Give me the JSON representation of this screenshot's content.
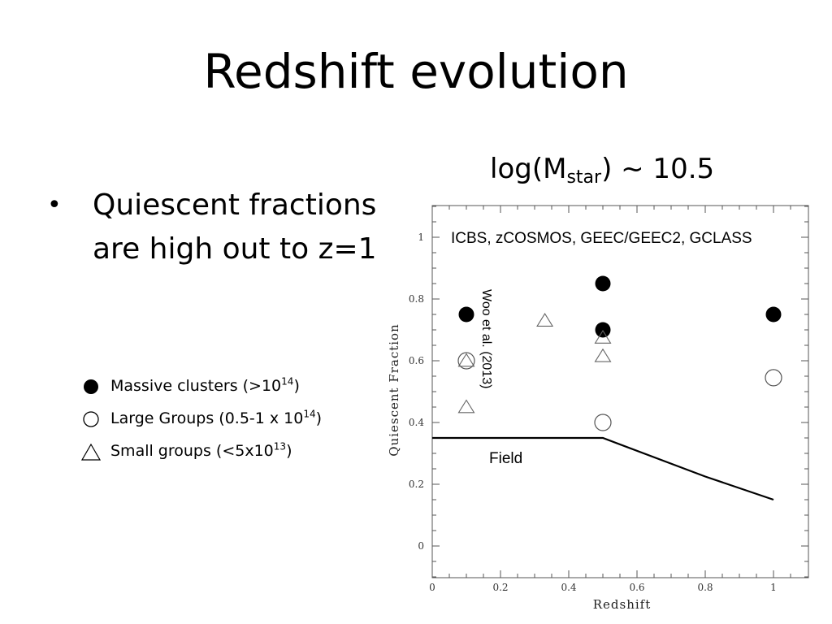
{
  "slide": {
    "title": "Redshift evolution",
    "bullet": "Quiescent fractions are high out to z=1",
    "subtitle_prefix": "log(M",
    "subtitle_sub": "star",
    "subtitle_suffix": ") ~ 10.5"
  },
  "legend": [
    {
      "symbol": "filled-circle",
      "label": "Massive clusters (>10",
      "sup": "14",
      "suffix": ")"
    },
    {
      "symbol": "open-circle",
      "label": "Large Groups (0.5-1 x 10",
      "sup": "14",
      "suffix": ")"
    },
    {
      "symbol": "open-triangle",
      "label": "Small groups (<5x10",
      "sup": "13",
      "suffix": ")"
    }
  ],
  "chart_data": {
    "type": "scatter",
    "xlabel": "Redshift",
    "ylabel": "Quiescent Fraction",
    "xlim": [
      0,
      1.1
    ],
    "ylim": [
      -0.1,
      1.1
    ],
    "xticks": [
      0,
      0.2,
      0.4,
      0.6,
      0.8,
      1
    ],
    "xtick_labels": [
      "0",
      "0.2",
      "0.4",
      "0.6",
      "0.8",
      "1"
    ],
    "yticks": [
      0,
      0.2,
      0.4,
      0.6,
      0.8,
      1
    ],
    "ytick_labels": [
      "0",
      "0.2",
      "0.4",
      "0.6",
      "0.8",
      "1"
    ],
    "annotations": {
      "surveys": "ICBS, zCOSMOS, GEEC/GEEC2, GCLASS",
      "reference": "Woo et al. (2013)",
      "field": "Field"
    },
    "series": [
      {
        "marker": "filled-circle",
        "points": [
          [
            0.1,
            0.75
          ],
          [
            0.5,
            0.85
          ],
          [
            0.5,
            0.7
          ],
          [
            1.0,
            0.75
          ]
        ]
      },
      {
        "marker": "open-circle",
        "points": [
          [
            0.1,
            0.6
          ],
          [
            0.5,
            0.4
          ],
          [
            1.0,
            0.545
          ]
        ]
      },
      {
        "marker": "open-triangle",
        "points": [
          [
            0.1,
            0.6
          ],
          [
            0.1,
            0.45
          ],
          [
            0.33,
            0.73
          ],
          [
            0.5,
            0.675
          ],
          [
            0.5,
            0.615
          ]
        ]
      },
      {
        "marker": "line",
        "name": "Field",
        "points": [
          [
            0,
            0.35
          ],
          [
            0.5,
            0.35
          ],
          [
            0.8,
            0.225
          ],
          [
            1.0,
            0.15
          ]
        ]
      }
    ]
  }
}
